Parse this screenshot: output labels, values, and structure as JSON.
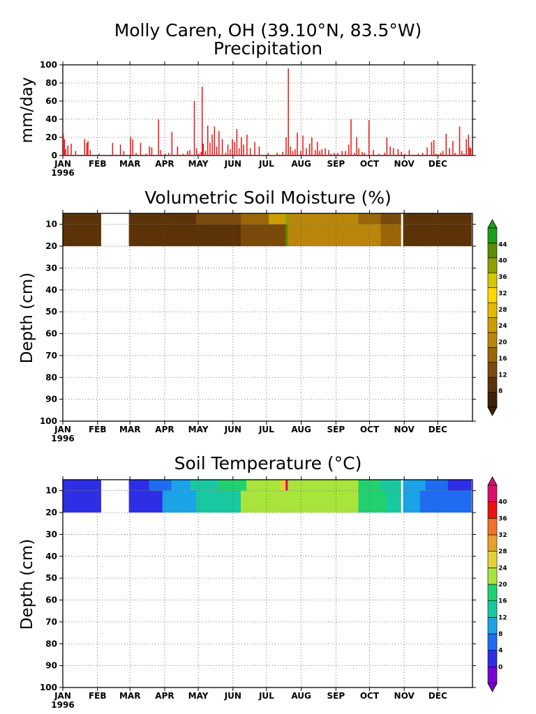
{
  "figure": {
    "title_line1": "Molly Caren, OH (39.10°N, 83.5°W)",
    "year_label": "1996",
    "months": [
      "JAN",
      "FEB",
      "MAR",
      "APR",
      "MAY",
      "JUN",
      "JUL",
      "AUG",
      "SEP",
      "OCT",
      "NOV",
      "DEC"
    ]
  },
  "colors": {
    "precip_bar": "#ee1111",
    "moisture_scale": [
      "#3d2005",
      "#5c3308",
      "#7a4a0c",
      "#9a6608",
      "#b8860b",
      "#cc9c00",
      "#e6b800",
      "#ffd700",
      "#d6c800",
      "#8fa000",
      "#5a8c00",
      "#1e9e1e"
    ],
    "temperature_scale": [
      "#7a00d6",
      "#2e2ee6",
      "#1f6cf0",
      "#1aa3e6",
      "#19c8a0",
      "#22d070",
      "#a8e43c",
      "#e6d03a",
      "#e6a030",
      "#f07028",
      "#ee1111",
      "#d8106a"
    ]
  },
  "chart_data": [
    {
      "type": "bar",
      "title": "Precipitation",
      "ylabel": "mm/day",
      "ylim": [
        0,
        100
      ],
      "yticks": [
        0,
        20,
        40,
        60,
        80,
        100
      ],
      "x_unit": "day of year 1996",
      "grid": true,
      "x": [
        1,
        2,
        3,
        5,
        8,
        12,
        20,
        22,
        23,
        25,
        33,
        45,
        48,
        52,
        55,
        61,
        63,
        66,
        70,
        75,
        78,
        80,
        86,
        88,
        92,
        95,
        98,
        103,
        108,
        112,
        114,
        118,
        120,
        122,
        124,
        125,
        126,
        128,
        130,
        132,
        134,
        136,
        138,
        140,
        143,
        146,
        148,
        150,
        152,
        154,
        156,
        158,
        160,
        162,
        165,
        168,
        172,
        176,
        184,
        192,
        194,
        197,
        200,
        202,
        204,
        206,
        208,
        210,
        213,
        215,
        218,
        221,
        223,
        226,
        228,
        230,
        232,
        235,
        238,
        240,
        243,
        246,
        250,
        253,
        256,
        258,
        261,
        263,
        265,
        268,
        270,
        274,
        278,
        283,
        288,
        290,
        293,
        296,
        300,
        303,
        306,
        310,
        314,
        318,
        322,
        326,
        330,
        332,
        334,
        336,
        338,
        340,
        343,
        346,
        349,
        351,
        353,
        355,
        357,
        359,
        361,
        363,
        364,
        365
      ],
      "values": [
        24,
        18,
        7,
        11,
        13,
        5,
        18,
        14,
        16,
        6,
        2,
        14,
        1,
        12,
        5,
        21,
        18,
        3,
        14,
        2,
        10,
        9,
        40,
        6,
        2,
        3,
        26,
        10,
        2,
        5,
        6,
        60,
        8,
        2,
        4,
        76,
        13,
        5,
        33,
        14,
        23,
        32,
        10,
        27,
        18,
        3,
        12,
        7,
        18,
        15,
        29,
        8,
        20,
        12,
        23,
        8,
        15,
        10,
        3,
        3,
        1,
        4,
        20,
        96,
        10,
        5,
        7,
        25,
        5,
        22,
        8,
        13,
        20,
        6,
        15,
        5,
        7,
        8,
        6,
        2,
        3,
        3,
        5,
        5,
        12,
        40,
        3,
        20,
        8,
        4,
        3,
        39,
        6,
        2,
        3,
        20,
        10,
        8,
        7,
        4,
        2,
        6,
        1,
        2,
        3,
        9,
        15,
        17,
        2,
        1,
        3,
        5,
        24,
        8,
        16,
        3,
        1,
        32,
        5,
        2,
        18,
        23,
        9,
        8
      ]
    },
    {
      "type": "heatmap",
      "title": "Volumetric Soil Moisture (%)",
      "ylabel": "Depth (cm)",
      "ylim": [
        100,
        5
      ],
      "yticks": [
        10,
        20,
        30,
        40,
        50,
        60,
        70,
        80,
        90,
        100
      ],
      "x_unit": "day of year 1996",
      "depth_bands": [
        [
          5,
          10
        ],
        [
          10,
          20
        ]
      ],
      "missing_days": [
        [
          35,
          60
        ],
        [
          303,
          305
        ]
      ],
      "segments_top": [
        [
          1,
          35,
          8
        ],
        [
          60,
          98,
          8
        ],
        [
          98,
          120,
          10
        ],
        [
          120,
          140,
          12
        ],
        [
          140,
          160,
          14
        ],
        [
          160,
          185,
          18
        ],
        [
          185,
          200,
          24
        ],
        [
          200,
          203,
          40
        ],
        [
          203,
          265,
          22
        ],
        [
          265,
          285,
          16
        ],
        [
          285,
          303,
          14
        ],
        [
          305,
          330,
          10
        ],
        [
          330,
          366,
          8
        ]
      ],
      "segments_bottom": [
        [
          1,
          35,
          8
        ],
        [
          60,
          115,
          8
        ],
        [
          115,
          160,
          10
        ],
        [
          160,
          200,
          14
        ],
        [
          200,
          202,
          42
        ],
        [
          202,
          285,
          22
        ],
        [
          285,
          303,
          16
        ],
        [
          305,
          330,
          10
        ],
        [
          330,
          366,
          8
        ]
      ],
      "colorbar_ticks": [
        8,
        12,
        16,
        20,
        24,
        28,
        32,
        36,
        40,
        44
      ],
      "colorbar_range": [
        4,
        48
      ]
    },
    {
      "type": "heatmap",
      "title": "Soil Temperature (°C)",
      "ylabel": "Depth (cm)",
      "ylim": [
        100,
        5
      ],
      "yticks": [
        10,
        20,
        30,
        40,
        50,
        60,
        70,
        80,
        90,
        100
      ],
      "x_unit": "day of year 1996",
      "depth_bands": [
        [
          5,
          10
        ],
        [
          10,
          20
        ]
      ],
      "missing_days": [
        [
          35,
          60
        ],
        [
          303,
          305
        ]
      ],
      "segments_top": [
        [
          1,
          35,
          1
        ],
        [
          60,
          78,
          3
        ],
        [
          78,
          98,
          6
        ],
        [
          98,
          115,
          10
        ],
        [
          115,
          140,
          13
        ],
        [
          140,
          165,
          17
        ],
        [
          165,
          195,
          22
        ],
        [
          195,
          200,
          26
        ],
        [
          200,
          202,
          40
        ],
        [
          202,
          265,
          23
        ],
        [
          265,
          285,
          19
        ],
        [
          285,
          303,
          14
        ],
        [
          305,
          325,
          11
        ],
        [
          325,
          345,
          6
        ],
        [
          345,
          366,
          3
        ]
      ],
      "segments_bottom": [
        [
          1,
          35,
          1
        ],
        [
          60,
          90,
          3
        ],
        [
          90,
          120,
          9
        ],
        [
          120,
          160,
          14
        ],
        [
          160,
          200,
          21
        ],
        [
          200,
          265,
          23
        ],
        [
          265,
          290,
          19
        ],
        [
          290,
          303,
          14
        ],
        [
          305,
          320,
          11
        ],
        [
          320,
          345,
          7
        ],
        [
          345,
          366,
          4
        ]
      ],
      "colorbar_ticks": [
        0,
        4,
        8,
        12,
        16,
        20,
        24,
        28,
        32,
        36,
        40
      ],
      "colorbar_range": [
        -4,
        44
      ]
    }
  ]
}
